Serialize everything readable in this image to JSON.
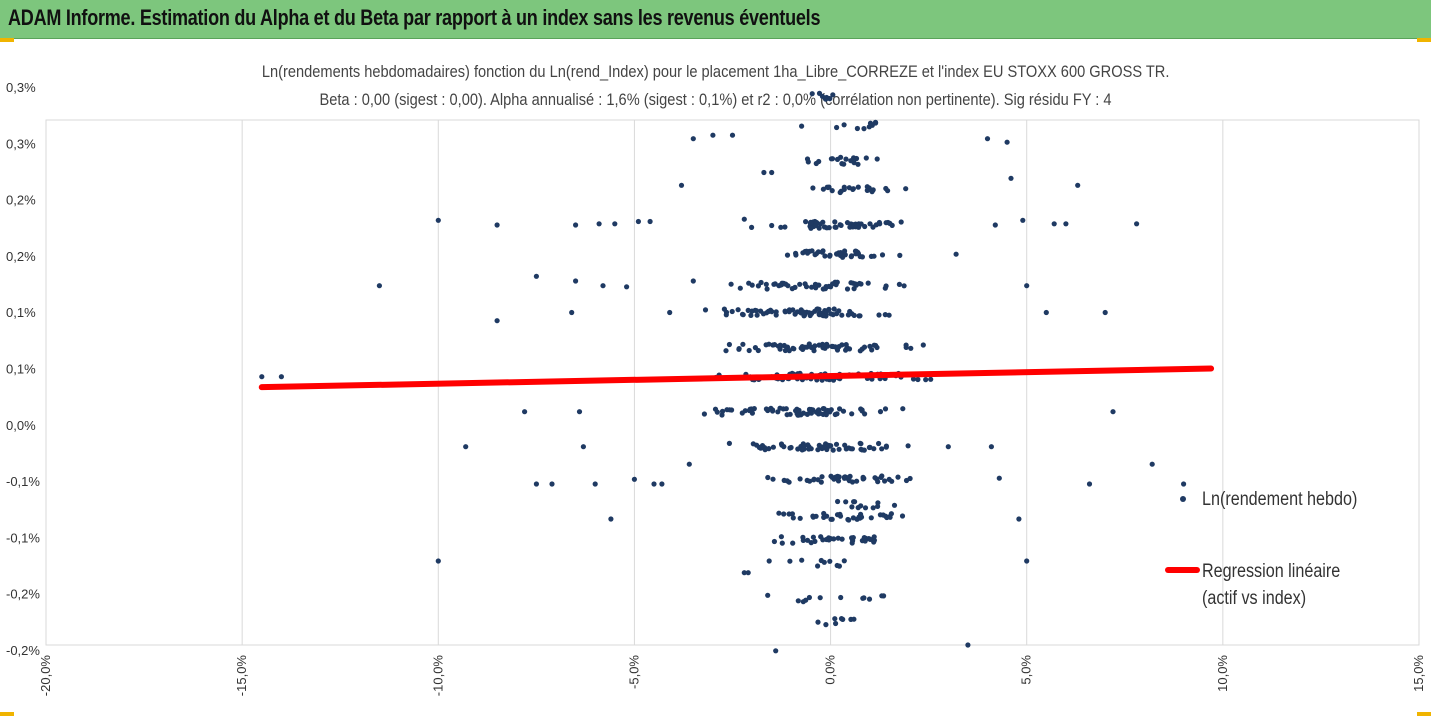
{
  "header": {
    "title": "ADAM Informe. Estimation du Alpha et du Beta par rapport à un index sans les revenus éventuels"
  },
  "colors": {
    "banner": "#7dc67d",
    "points": "#1f3a63",
    "regression": "#ff0000",
    "grid": "#d9d9d9",
    "accent": "#f0b400"
  },
  "chart_data": {
    "type": "scatter",
    "title": "Ln(rendements hebdomadaires) fonction du Ln(rend_Index) pour le placement 1ha_Libre_CORREZE et l'index EU STOXX 600 GROSS TR.",
    "subtitle": "Beta : 0,00 (sigest : 0,00). Alpha annualisé : 1,6% (sigest : 0,1%) et r2 : 0,0% (corrélation non pertinente). Sig résidu FY : 4",
    "xlabel": "",
    "ylabel": "",
    "x_ticks": [
      "-20,0%",
      "-15,0%",
      "-10,0%",
      "-5,0%",
      "0,0%",
      "5,0%",
      "10,0%",
      "15,0%"
    ],
    "x_tick_values": [
      -20,
      -15,
      -10,
      -5,
      0,
      5,
      10,
      15
    ],
    "xlim": [
      -20,
      15
    ],
    "y_ticks": [
      "-0,2%",
      "-0,2%",
      "-0,1%",
      "-0,1%",
      "0,0%",
      "0,1%",
      "0,1%",
      "0,2%",
      "0,2%",
      "0,3%",
      "0,3%"
    ],
    "y_tick_values": [
      -0.225,
      -0.15,
      -0.1,
      -0.05,
      0,
      0.05,
      0.1,
      0.15,
      0.2,
      0.25,
      0.3
    ],
    "ylim": [
      -0.2,
      0.25
    ],
    "grid": "vertical",
    "legend": {
      "placement": "right",
      "items": [
        "Ln(rendement hebdo)",
        "Regression linéaire (actif vs index)"
      ]
    },
    "regression": {
      "name": "Regression linéaire (actif vs index)",
      "x": [
        -14.5,
        9.7
      ],
      "y": [
        0.021,
        0.037
      ]
    },
    "series_name": "Ln(rendement hebdo)",
    "outliers": [
      [
        -14.5,
        0.03
      ],
      [
        -14.0,
        0.03
      ],
      [
        -11.5,
        0.108
      ],
      [
        -10.0,
        0.164
      ],
      [
        -10.0,
        -0.128
      ],
      [
        -9.3,
        -0.03
      ],
      [
        -8.5,
        0.16
      ],
      [
        -8.5,
        0.078
      ],
      [
        -7.8,
        0.0
      ],
      [
        -7.5,
        0.116
      ],
      [
        -7.5,
        -0.062
      ],
      [
        -7.1,
        -0.062
      ],
      [
        -6.6,
        0.085
      ],
      [
        -6.5,
        0.112
      ],
      [
        -6.5,
        0.16
      ],
      [
        -6.4,
        0.0
      ],
      [
        -6.3,
        -0.03
      ],
      [
        -6.0,
        -0.062
      ],
      [
        -5.9,
        0.161
      ],
      [
        -5.8,
        0.108
      ],
      [
        -5.6,
        -0.092
      ],
      [
        -5.5,
        0.161
      ],
      [
        -5.2,
        0.107
      ],
      [
        -5.0,
        -0.058
      ],
      [
        -4.9,
        0.163
      ],
      [
        -4.6,
        0.163
      ],
      [
        -4.5,
        -0.062
      ],
      [
        -4.3,
        -0.062
      ],
      [
        -4.1,
        0.085
      ],
      [
        -3.8,
        0.194
      ],
      [
        -3.6,
        -0.045
      ],
      [
        -3.5,
        0.234
      ],
      [
        -3.5,
        0.112
      ],
      [
        -3.0,
        0.237
      ],
      [
        -2.5,
        0.237
      ],
      [
        -2.2,
        0.165
      ],
      [
        -2.2,
        -0.138
      ],
      [
        -2.1,
        -0.138
      ],
      [
        -1.7,
        0.205
      ],
      [
        -1.5,
        0.205
      ],
      [
        -1.4,
        -0.205
      ],
      [
        3.0,
        -0.03
      ],
      [
        3.2,
        0.135
      ],
      [
        3.5,
        -0.2
      ],
      [
        4.0,
        0.234
      ],
      [
        4.1,
        -0.03
      ],
      [
        4.2,
        0.16
      ],
      [
        4.3,
        -0.057
      ],
      [
        4.5,
        0.231
      ],
      [
        4.6,
        0.2
      ],
      [
        4.8,
        -0.092
      ],
      [
        4.9,
        0.164
      ],
      [
        5.0,
        0.108
      ],
      [
        5.0,
        -0.128
      ],
      [
        5.5,
        0.085
      ],
      [
        5.7,
        0.161
      ],
      [
        6.0,
        0.161
      ],
      [
        6.3,
        0.194
      ],
      [
        6.6,
        -0.062
      ],
      [
        7.0,
        0.085
      ],
      [
        7.2,
        0.0
      ],
      [
        7.8,
        0.161
      ],
      [
        8.2,
        -0.045
      ],
      [
        9.0,
        -0.062
      ]
    ],
    "bands": [
      {
        "y": 0.0,
        "xmin": -4.5,
        "xmax": 3.2,
        "count": 70
      },
      {
        "y": 0.03,
        "xmin": -4.0,
        "xmax": 3.3,
        "count": 75
      },
      {
        "y": -0.03,
        "xmin": -3.7,
        "xmax": 3.0,
        "count": 60
      },
      {
        "y": 0.055,
        "xmin": -3.8,
        "xmax": 2.8,
        "count": 60
      },
      {
        "y": 0.085,
        "xmin": -4.0,
        "xmax": 2.5,
        "count": 75
      },
      {
        "y": -0.058,
        "xmin": -2.5,
        "xmax": 2.9,
        "count": 45
      },
      {
        "y": 0.108,
        "xmin": -3.2,
        "xmax": 2.7,
        "count": 50
      },
      {
        "y": -0.09,
        "xmin": -2.2,
        "xmax": 3.0,
        "count": 35
      },
      {
        "y": 0.135,
        "xmin": -2.0,
        "xmax": 2.5,
        "count": 40
      },
      {
        "y": -0.11,
        "xmin": -2.2,
        "xmax": 2.3,
        "count": 32
      },
      {
        "y": 0.16,
        "xmin": -2.7,
        "xmax": 3.0,
        "count": 50
      },
      {
        "y": -0.08,
        "xmin": -0.5,
        "xmax": 2.0,
        "count": 12
      },
      {
        "y": 0.19,
        "xmin": -1.2,
        "xmax": 2.2,
        "count": 25
      },
      {
        "y": -0.13,
        "xmin": -2.0,
        "xmax": 2.0,
        "count": 10
      },
      {
        "y": 0.215,
        "xmin": -1.5,
        "xmax": 1.8,
        "count": 18
      },
      {
        "y": 0.245,
        "xmin": -1.0,
        "xmax": 2.5,
        "count": 12
      },
      {
        "y": 0.27,
        "xmin": -0.8,
        "xmax": 0.5,
        "count": 8
      },
      {
        "y": -0.16,
        "xmin": -2.2,
        "xmax": 2.4,
        "count": 12
      },
      {
        "y": -0.18,
        "xmin": -1.0,
        "xmax": 1.5,
        "count": 8
      }
    ]
  }
}
